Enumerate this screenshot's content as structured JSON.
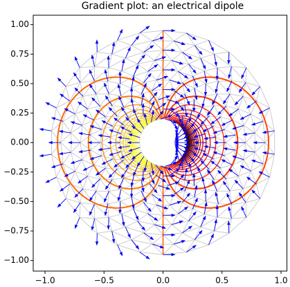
{
  "chart_data": {
    "type": "tricontour-quiver",
    "title": "Gradient plot: an electrical dipole",
    "xlim": [
      -1.1,
      1.05
    ],
    "ylim": [
      -1.09,
      1.08
    ],
    "xticks": [
      {
        "value": -1.0,
        "label": "−1.0"
      },
      {
        "value": -0.5,
        "label": "−0.5"
      },
      {
        "value": 0.0,
        "label": "0.0"
      },
      {
        "value": 0.5,
        "label": "0.5"
      },
      {
        "value": 1.0,
        "label": "1.0"
      }
    ],
    "yticks": [
      {
        "value": -1.0,
        "label": "−1.00"
      },
      {
        "value": -0.75,
        "label": "−0.75"
      },
      {
        "value": -0.5,
        "label": "−0.50"
      },
      {
        "value": -0.25,
        "label": "−0.25"
      },
      {
        "value": 0.0,
        "label": "0.00"
      },
      {
        "value": 0.25,
        "label": "0.25"
      },
      {
        "value": 0.5,
        "label": "0.50"
      },
      {
        "value": 0.75,
        "label": "0.75"
      },
      {
        "value": 1.0,
        "label": "1.00"
      }
    ],
    "mesh_color": "#cccccc",
    "arrow_color": "#0000ee"
  }
}
